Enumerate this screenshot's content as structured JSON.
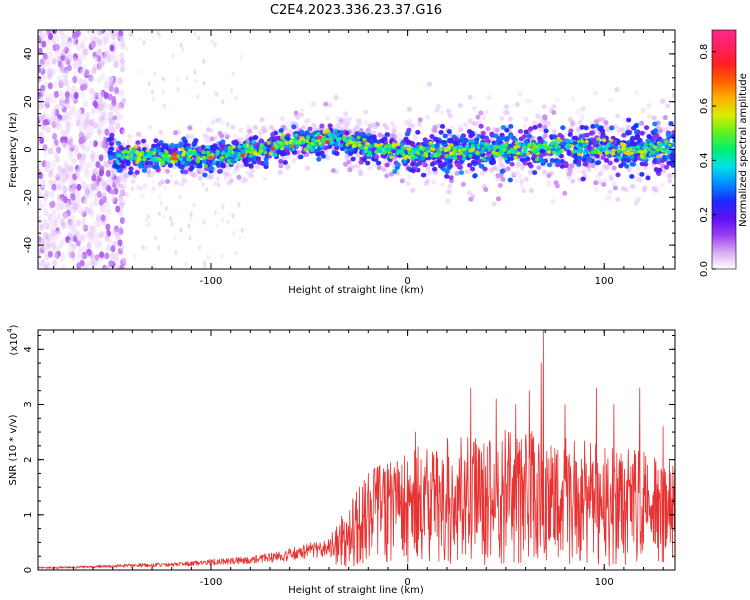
{
  "title": "C2E4.2023.336.23.37.G16",
  "chart_data": [
    {
      "type": "heatmap",
      "xlabel": "Height of straight line (km)",
      "ylabel": "Frequency (Hz)",
      "xlim": [
        -188,
        136
      ],
      "ylim": [
        -50,
        50
      ],
      "xticks": [
        -100,
        0,
        100
      ],
      "yticks": [
        -40,
        -20,
        0,
        20,
        40
      ],
      "grid": false,
      "colorbar": {
        "label": "Normalized spectral amplitude",
        "range": [
          0.0,
          0.88
        ],
        "ticks": [
          0.0,
          0.2,
          0.4,
          0.6,
          0.8
        ],
        "colormap": [
          "#ffffff",
          "#d8a8f4",
          "#9a3cf0",
          "#5a10f4",
          "#1a2cff",
          "#0090ff",
          "#00e0e8",
          "#00f070",
          "#60f020",
          "#d8ee00",
          "#ffb000",
          "#ff6000",
          "#ff2020",
          "#ff2060",
          "#ff2a8a"
        ]
      },
      "ridge": [
        {
          "x": -150,
          "y": -3
        },
        {
          "x": -120,
          "y": -3
        },
        {
          "x": -100,
          "y": -3
        },
        {
          "x": -80,
          "y": -1
        },
        {
          "x": -60,
          "y": 2
        },
        {
          "x": -40,
          "y": 5
        },
        {
          "x": -20,
          "y": 1
        },
        {
          "x": 0,
          "y": -1
        },
        {
          "x": 20,
          "y": -1
        },
        {
          "x": 40,
          "y": 0
        },
        {
          "x": 60,
          "y": 0
        },
        {
          "x": 80,
          "y": 1
        },
        {
          "x": 100,
          "y": 1
        },
        {
          "x": 120,
          "y": 0
        },
        {
          "x": 136,
          "y": 1
        }
      ]
    },
    {
      "type": "line",
      "xlabel": "Height of straight line (km)",
      "ylabel": "SNR (10 * v/v)",
      "yscale_label": "(x10",
      "yscale_exp": "4",
      "xlim": [
        -188,
        136
      ],
      "ylim": [
        0,
        4.35
      ],
      "xticks": [
        -100,
        0,
        100
      ],
      "yticks": [
        0,
        1,
        2,
        3,
        4
      ],
      "grid": false,
      "color": "#e83232",
      "series": [
        {
          "x": [
            -188,
            -170,
            -150,
            -140,
            -130,
            -120,
            -110,
            -100,
            -90,
            -80,
            -70,
            -60,
            -50,
            -40,
            -35,
            -30,
            -25,
            -20,
            -15,
            -10,
            -5,
            0,
            10,
            20,
            30,
            40,
            50,
            60,
            70,
            80,
            90,
            100,
            110,
            120,
            130,
            136
          ],
          "y": [
            0.04,
            0.05,
            0.07,
            0.08,
            0.09,
            0.1,
            0.12,
            0.14,
            0.16,
            0.18,
            0.22,
            0.28,
            0.35,
            0.4,
            0.55,
            0.75,
            0.9,
            1.05,
            1.15,
            1.2,
            1.3,
            1.35,
            1.4,
            1.45,
            1.5,
            1.55,
            1.55,
            1.55,
            1.5,
            1.45,
            1.45,
            1.4,
            1.35,
            1.3,
            1.25,
            1.2
          ],
          "peaks": [
            {
              "x": -20,
              "y": 1.75
            },
            {
              "x": 4,
              "y": 2.5
            },
            {
              "x": 32,
              "y": 3.3
            },
            {
              "x": 45,
              "y": 3.1
            },
            {
              "x": 55,
              "y": 3.0
            },
            {
              "x": 62,
              "y": 3.25
            },
            {
              "x": 69,
              "y": 4.35
            },
            {
              "x": 68,
              "y": 3.75
            },
            {
              "x": 80,
              "y": 3.0
            },
            {
              "x": 96,
              "y": 3.3
            },
            {
              "x": 105,
              "y": 3.0
            },
            {
              "x": 118,
              "y": 3.3
            },
            {
              "x": 130,
              "y": 2.6
            }
          ]
        }
      ]
    }
  ]
}
